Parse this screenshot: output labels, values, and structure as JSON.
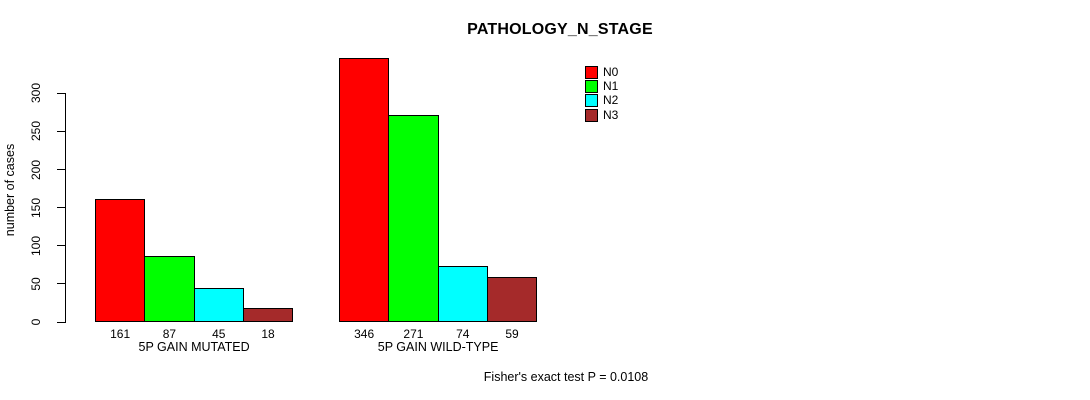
{
  "chart_data": {
    "type": "bar",
    "title": "PATHOLOGY_N_STAGE",
    "ylabel": "number of cases",
    "xlabel": "",
    "footnote": "Fisher's exact test P = 0.0108",
    "yticks": [
      0,
      50,
      100,
      150,
      200,
      250,
      300
    ],
    "ylim": [
      0,
      350
    ],
    "grid": false,
    "legend_position": "top-right",
    "categories": [
      "5P GAIN MUTATED",
      "5P GAIN WILD-TYPE"
    ],
    "series_names": [
      "N0",
      "N1",
      "N2",
      "N3"
    ],
    "series_colors": [
      "#ff0000",
      "#00ff00",
      "#00ffff",
      "#a52a2a"
    ],
    "series": [
      {
        "name": "N0",
        "values": [
          161,
          346
        ]
      },
      {
        "name": "N1",
        "values": [
          87,
          271
        ]
      },
      {
        "name": "N2",
        "values": [
          45,
          74
        ]
      },
      {
        "name": "N3",
        "values": [
          18,
          59
        ]
      }
    ],
    "bar_border_color": "#000000",
    "text_color": "#000000",
    "background_color": "#ffffff"
  }
}
